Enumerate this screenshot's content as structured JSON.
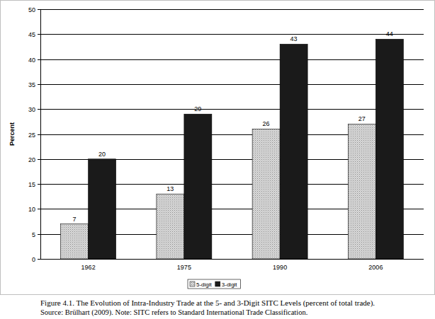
{
  "chart_data": {
    "type": "bar",
    "title": "Figure 4.1. The Evolution of Intra-Industry Trade at the 5- and 3-Digit SITC Levels (percent of total trade).",
    "subtitle": "Source: Brülhart (2009). Note: SITC refers to Standard International Trade Classification.",
    "y_label": "Percent",
    "categories": [
      "1962",
      "1975",
      "1990",
      "2006"
    ],
    "series": [
      {
        "name": "5-digit",
        "color": "#d9d9d9",
        "values": [
          7,
          13,
          26,
          27
        ]
      },
      {
        "name": "3-digit",
        "color": "#1a1a1a",
        "values": [
          20,
          29,
          43,
          44
        ]
      }
    ],
    "ylim": [
      0,
      50
    ],
    "yticks": [
      0,
      5,
      10,
      15,
      20,
      25,
      30,
      35,
      40,
      45,
      50
    ],
    "grid": true,
    "legend": "bottom",
    "data_labels": true
  }
}
